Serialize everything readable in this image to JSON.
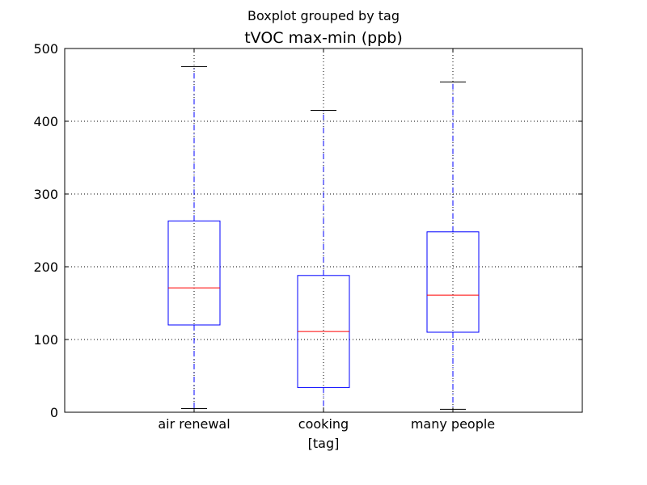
{
  "chart_data": {
    "type": "boxplot",
    "suptitle": "Boxplot grouped by tag",
    "title": "tVOC max-min (ppb)",
    "xlabel": "[tag]",
    "ylabel": "",
    "ylim": [
      0,
      500
    ],
    "yticks": [
      0,
      100,
      200,
      300,
      400,
      500
    ],
    "grid": true,
    "categories": [
      "air renewal",
      "cooking",
      "many people"
    ],
    "boxes": [
      {
        "name": "air renewal",
        "whisker_low": 5,
        "q1": 120,
        "median": 171,
        "q3": 263,
        "whisker_high": 475
      },
      {
        "name": "cooking",
        "whisker_low": 0,
        "q1": 34,
        "median": 111,
        "q3": 188,
        "whisker_high": 415
      },
      {
        "name": "many people",
        "whisker_low": 4,
        "q1": 110,
        "median": 161,
        "q3": 248,
        "whisker_high": 454
      }
    ],
    "colors": {
      "box": "#0000ff",
      "whisker": "#0000ff",
      "median": "#ff0000",
      "cap": "#000000",
      "grid": "#000000",
      "axes": "#000000"
    }
  }
}
